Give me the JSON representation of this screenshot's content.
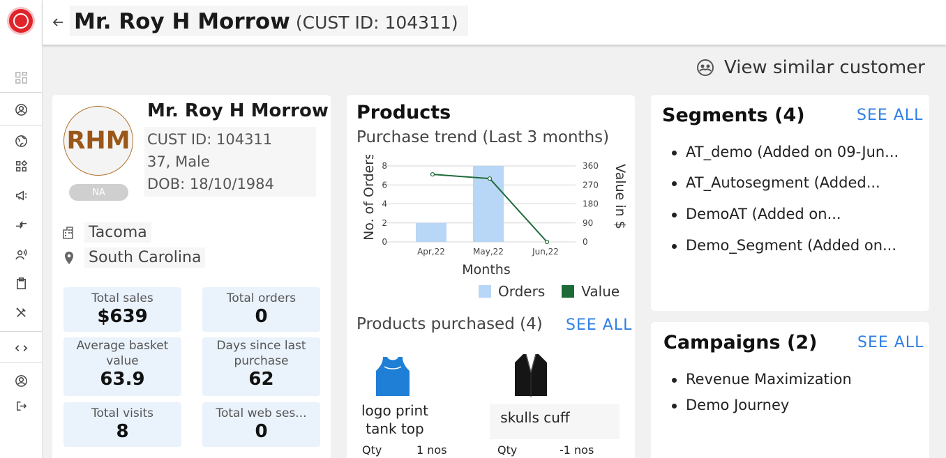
{
  "customer": {
    "name": "Mr. Roy H Morrow",
    "cust_id_header": "(CUST ID: 104311)",
    "initials": "RHM",
    "badge": "NA",
    "cust_id": "CUST ID: 104311",
    "age_gender": "37, Male",
    "dob": "DOB: 18/10/1984",
    "city": "Tacoma",
    "state": "South Carolina"
  },
  "actions": {
    "view_similar": "View similar customer"
  },
  "stats": [
    {
      "label": "Total sales",
      "value": "$639"
    },
    {
      "label": "Total orders",
      "value": "0"
    },
    {
      "label": "Average basket value",
      "value": "63.9"
    },
    {
      "label": "Days since last purchase",
      "value": "62"
    },
    {
      "label": "Total visits",
      "value": "8"
    },
    {
      "label": "Total web ses...",
      "value": "0"
    }
  ],
  "products": {
    "title": "Products",
    "trend_title": "Purchase trend (Last 3 months)",
    "purchased_title": "Products purchased (4)",
    "see_all": "SEE ALL",
    "items": [
      {
        "name_line1": "logo print",
        "name_line2": "tank top",
        "qty_label": "Qty",
        "qty_value": "1 nos",
        "color": "#1f7fd6",
        "icon": "tank-top-icon"
      },
      {
        "name_line1": "skulls cuff",
        "name_line2": "",
        "qty_label": "Qty",
        "qty_value": "-1 nos",
        "color": "#151515",
        "icon": "blazer-icon"
      }
    ]
  },
  "chart_data": {
    "type": "bar",
    "categories": [
      "Apr,22",
      "May,22",
      "Jun,22"
    ],
    "series": [
      {
        "name": "Orders",
        "type": "bar",
        "axis": "left",
        "values": [
          2,
          8,
          0
        ],
        "color": "#b8d6f6"
      },
      {
        "name": "Value",
        "type": "line",
        "axis": "right",
        "values": [
          320,
          300,
          0
        ],
        "color": "#1e6b3a"
      }
    ],
    "xlabel": "Months",
    "ylabel": "No. of Orders",
    "y2label": "Value in $",
    "ylim": [
      0,
      8
    ],
    "y2lim": [
      0,
      360
    ],
    "yticks": [
      "0",
      "2",
      "4",
      "6",
      "8"
    ],
    "y2ticks": [
      "0",
      "90",
      "180",
      "270",
      "360"
    ],
    "grid": true,
    "legend": "bottom"
  },
  "segments": {
    "title": "Segments (4)",
    "see_all": "SEE ALL",
    "items": [
      "AT_demo (Added on 09-Jun...",
      "AT_Autosegment (Added...",
      "DemoAT (Added on...",
      "Demo_Segment (Added on..."
    ]
  },
  "campaigns": {
    "title": "Campaigns (2)",
    "see_all": "SEE ALL",
    "items": [
      "Revenue Maximization",
      "Demo Journey"
    ]
  },
  "colors": {
    "accent": "#2f7fe6",
    "stat_bg": "#eaf2fc",
    "brand": "#e0242b"
  }
}
